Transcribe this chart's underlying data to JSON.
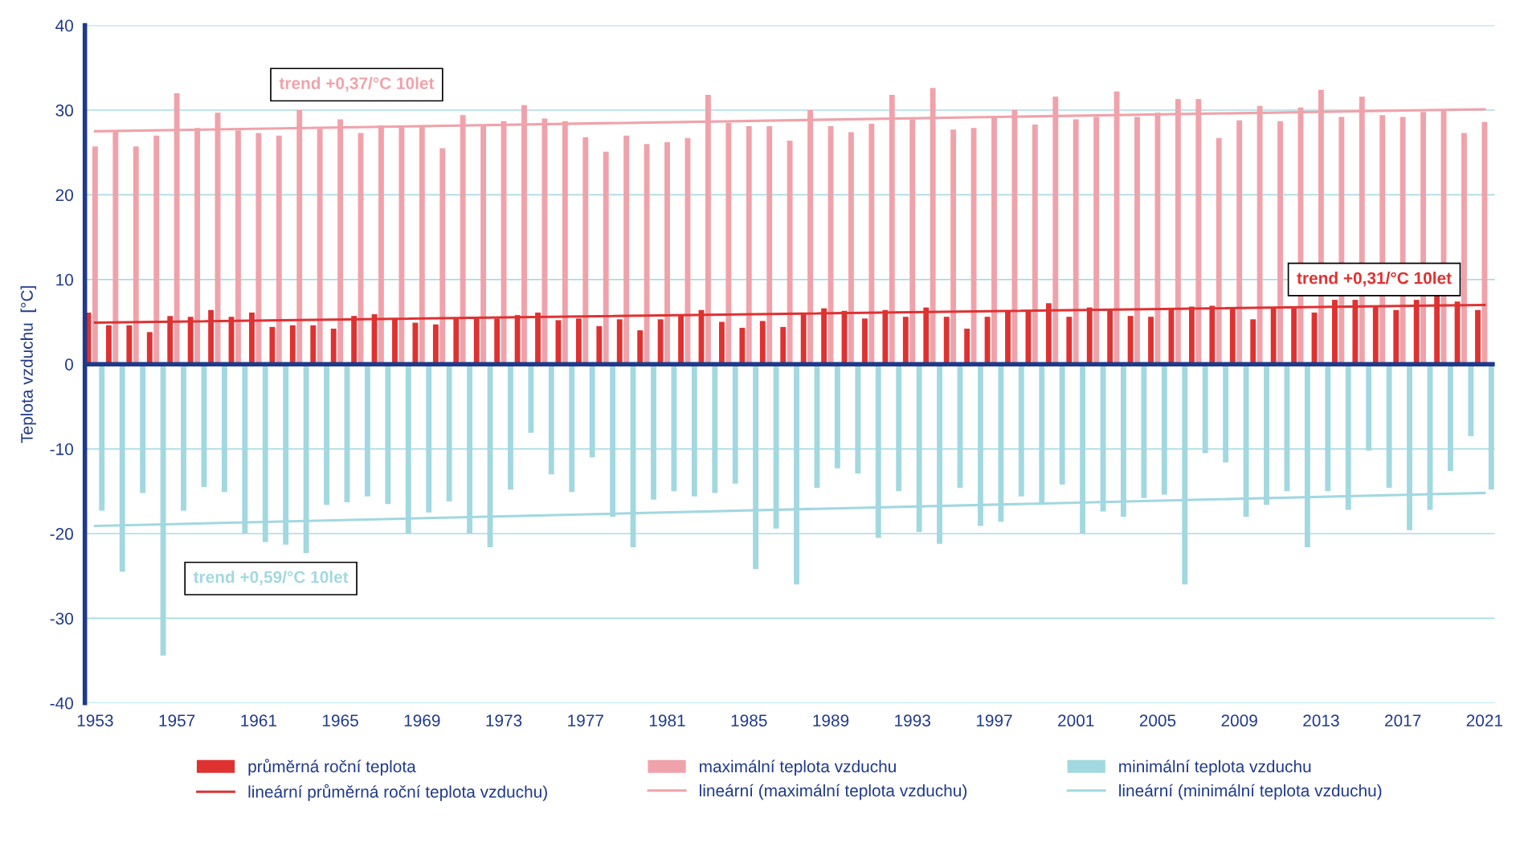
{
  "chart_data": {
    "type": "bar",
    "ylabel": "Teplota vzduchu  [°C]",
    "categories": [
      "1953",
      null,
      null,
      null,
      "1957",
      null,
      null,
      null,
      "1961",
      null,
      null,
      null,
      "1965",
      null,
      null,
      null,
      "1969",
      null,
      null,
      null,
      "1973",
      null,
      null,
      null,
      "1977",
      null,
      null,
      null,
      "1981",
      null,
      null,
      null,
      "1985",
      null,
      null,
      null,
      "1989",
      null,
      null,
      null,
      "1993",
      null,
      null,
      null,
      "1997",
      null,
      null,
      null,
      "2001",
      null,
      null,
      null,
      "2005",
      null,
      null,
      null,
      "2009",
      null,
      null,
      null,
      "2013",
      null,
      null,
      null,
      "2017",
      null,
      null,
      null,
      "2021"
    ],
    "series": [
      {
        "name": "průměrná roční teplota",
        "color": "#e03131",
        "values": [
          6.1,
          4.6,
          4.6,
          3.8,
          5.7,
          5.6,
          6.4,
          5.6,
          6.1,
          4.4,
          4.6,
          4.6,
          4.2,
          5.7,
          5.9,
          5.4,
          4.9,
          4.7,
          5.5,
          5.4,
          5.4,
          5.8,
          6.1,
          5.2,
          5.4,
          4.5,
          5.3,
          4.0,
          5.3,
          5.9,
          6.4,
          5.0,
          4.3,
          5.1,
          4.4,
          6.0,
          6.6,
          6.3,
          5.4,
          6.4,
          5.6,
          6.7,
          5.6,
          4.2,
          5.6,
          6.2,
          6.2,
          7.2,
          5.6,
          6.7,
          6.4,
          5.7,
          5.6,
          6.6,
          6.8,
          6.9,
          6.6,
          5.3,
          6.6,
          6.6,
          6.1,
          7.6,
          7.6,
          6.8,
          6.4,
          7.6,
          8.1,
          7.4,
          6.4
        ]
      },
      {
        "name": "maximální teplota vzduchu",
        "color": "#f0a2aa",
        "values": [
          25.7,
          27.5,
          25.7,
          27.0,
          32.0,
          27.9,
          29.7,
          27.6,
          27.3,
          27.0,
          30.0,
          27.8,
          28.9,
          27.3,
          28.2,
          28.0,
          28.0,
          25.5,
          29.4,
          28.2,
          28.7,
          30.6,
          29.0,
          28.7,
          26.8,
          25.1,
          27.0,
          26.0,
          26.2,
          26.7,
          31.8,
          28.5,
          28.1,
          28.1,
          26.4,
          30.0,
          28.1,
          27.4,
          28.4,
          31.8,
          28.9,
          32.6,
          27.7,
          27.9,
          29.2,
          30.0,
          28.3,
          31.6,
          28.9,
          29.2,
          32.2,
          29.2,
          29.7,
          31.3,
          31.3,
          26.7,
          28.8,
          30.5,
          28.7,
          30.3,
          32.4,
          29.2,
          31.6,
          29.4,
          29.2,
          29.8,
          29.9,
          27.3,
          28.6
        ]
      },
      {
        "name": "minimální teplota vzduchu",
        "color": "#a2d8e0",
        "values": [
          -17.3,
          -24.5,
          -15.2,
          -34.4,
          -17.3,
          -14.5,
          -15.1,
          -20.0,
          -21.0,
          -21.3,
          -22.3,
          -16.6,
          -16.3,
          -15.6,
          -16.5,
          -20.0,
          -17.5,
          -16.2,
          -20.0,
          -21.6,
          -14.8,
          -8.1,
          -13.0,
          -15.1,
          -11.0,
          -18.0,
          -21.6,
          -16.0,
          -15.0,
          -15.6,
          -15.2,
          -14.1,
          -24.2,
          -19.4,
          -26.0,
          -14.6,
          -12.3,
          -12.9,
          -20.5,
          -15.0,
          -19.8,
          -21.2,
          -14.6,
          -19.1,
          -18.6,
          -15.6,
          -16.6,
          -14.2,
          -20.0,
          -17.4,
          -18.0,
          -15.8,
          -15.4,
          -26.0,
          -10.5,
          -11.6,
          -18.0,
          -16.6,
          -15.0,
          -21.6,
          -15.0,
          -17.2,
          -10.2,
          -14.6,
          -19.6,
          -17.2,
          -12.6,
          -8.5,
          -14.8
        ]
      },
      {
        "name": "lineární průměrná roční teplota vzduchu)",
        "type": "line",
        "color": "#e03131",
        "values": [
          4.9,
          null,
          null,
          null,
          null,
          null,
          null,
          null,
          null,
          null,
          null,
          null,
          null,
          null,
          null,
          null,
          null,
          null,
          null,
          null,
          null,
          null,
          null,
          null,
          null,
          null,
          null,
          null,
          null,
          null,
          null,
          null,
          null,
          null,
          null,
          null,
          null,
          null,
          null,
          null,
          null,
          null,
          null,
          null,
          null,
          null,
          null,
          null,
          null,
          null,
          null,
          null,
          null,
          null,
          null,
          null,
          null,
          null,
          null,
          null,
          null,
          null,
          null,
          null,
          null,
          null,
          null,
          null,
          7.0
        ]
      },
      {
        "name": "lineární (maximální teplota vzduchu)",
        "type": "line",
        "color": "#f0a2aa",
        "values": [
          27.5,
          null,
          null,
          null,
          null,
          null,
          null,
          null,
          null,
          null,
          null,
          null,
          null,
          null,
          null,
          null,
          null,
          null,
          null,
          null,
          null,
          null,
          null,
          null,
          null,
          null,
          null,
          null,
          null,
          null,
          null,
          null,
          null,
          null,
          null,
          null,
          null,
          null,
          null,
          null,
          null,
          null,
          null,
          null,
          null,
          null,
          null,
          null,
          null,
          null,
          null,
          null,
          null,
          null,
          null,
          null,
          null,
          null,
          null,
          null,
          null,
          null,
          null,
          null,
          null,
          null,
          null,
          null,
          30.1
        ]
      },
      {
        "name": "lineární (minimální teplota vzduchu)",
        "type": "line",
        "color": "#a2d8e0",
        "values": [
          -19.1,
          null,
          null,
          null,
          null,
          null,
          null,
          null,
          null,
          null,
          null,
          null,
          null,
          null,
          null,
          null,
          null,
          null,
          null,
          null,
          null,
          null,
          null,
          null,
          null,
          null,
          null,
          null,
          null,
          null,
          null,
          null,
          null,
          null,
          null,
          null,
          null,
          null,
          null,
          null,
          null,
          null,
          null,
          null,
          null,
          null,
          null,
          null,
          null,
          null,
          null,
          null,
          null,
          null,
          null,
          null,
          null,
          null,
          null,
          null,
          null,
          null,
          null,
          null,
          null,
          null,
          null,
          null,
          -15.2
        ]
      }
    ],
    "ylim": [
      -40,
      40
    ],
    "yticks": [
      -40,
      -30,
      -20,
      -10,
      0,
      10,
      20,
      30,
      40
    ],
    "grid": "y",
    "ref_lines": [
      {
        "axis": "y",
        "value": 0,
        "color": "#1f3a8a"
      }
    ],
    "legend": "bottom",
    "annotations": [
      "trend +0,37/°C 10let",
      "trend +0,31/°C 10let",
      "trend +0,59/°C 10let"
    ]
  }
}
